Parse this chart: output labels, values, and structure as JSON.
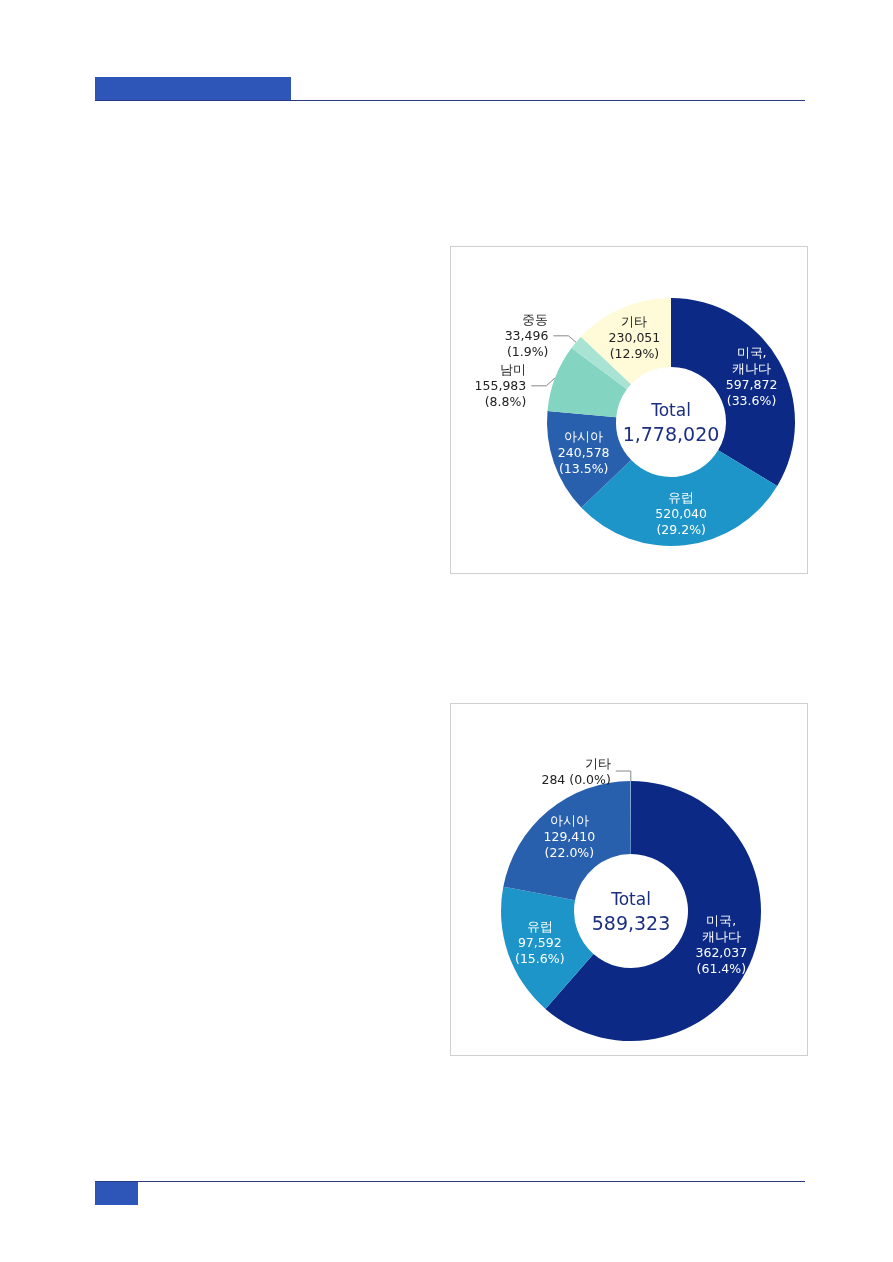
{
  "chart_data": [
    {
      "type": "donut",
      "categories": [
        "미국, 캐나다",
        "유럽",
        "아시아",
        "남미",
        "중동",
        "기타"
      ],
      "values": [
        597872,
        520040,
        240578,
        155983,
        33496,
        230051
      ],
      "colors": [
        "#0c2a85",
        "#1d95c9",
        "#2860ad",
        "#83d4c1",
        "#a9e3d3",
        "#fffad8"
      ],
      "value_labels": [
        "597,872 (33.6%)",
        "520,040 (29.2%)",
        "240,578 (13.5%)",
        "155,983 (8.8%)",
        "33,496 (1.9%)",
        "230,051 (12.9%)"
      ],
      "annotations": [
        "Total",
        "1,778,020"
      ]
    },
    {
      "type": "donut",
      "categories": [
        "미국, 캐나다",
        "유럽",
        "아시아",
        "기타"
      ],
      "values": [
        362037,
        97592,
        129410,
        284
      ],
      "colors": [
        "#0c2a85",
        "#1d95c9",
        "#2860ad",
        "#9fc3e6"
      ],
      "value_labels": [
        "362,037 (61.4%)",
        "97,592 (15.6%)",
        "129,410 (22.0%)",
        "284 (0.0%)"
      ],
      "annotations": [
        "Total",
        "589,323"
      ]
    }
  ]
}
